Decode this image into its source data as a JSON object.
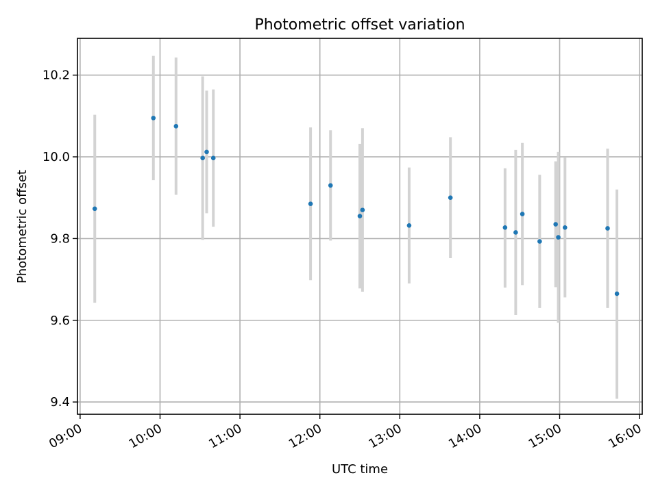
{
  "chart_data": {
    "type": "scatter",
    "title": "Photometric offset variation",
    "xlabel": "UTC time",
    "ylabel": "Photometric offset",
    "x_ticks": [
      "09:00",
      "10:00",
      "11:00",
      "12:00",
      "13:00",
      "14:00",
      "15:00",
      "16:00"
    ],
    "y_ticks": [
      "9.4",
      "9.6",
      "9.8",
      "10.0",
      "10.2"
    ],
    "xlim": [
      "08:58",
      "16:02"
    ],
    "ylim": [
      9.37,
      10.29
    ],
    "grid": true,
    "marker_color": "#1f77b4",
    "errorbar_color": "#d3d3d3",
    "series": [
      {
        "points": [
          {
            "x": "09:11",
            "y": 9.873,
            "ylow": 9.643,
            "yhigh": 10.103
          },
          {
            "x": "09:55",
            "y": 10.095,
            "ylow": 9.943,
            "yhigh": 10.247
          },
          {
            "x": "10:12",
            "y": 10.075,
            "ylow": 9.907,
            "yhigh": 10.243
          },
          {
            "x": "10:32",
            "y": 9.997,
            "ylow": 9.797,
            "yhigh": 10.197
          },
          {
            "x": "10:35",
            "y": 10.012,
            "ylow": 9.862,
            "yhigh": 10.162
          },
          {
            "x": "10:40",
            "y": 9.997,
            "ylow": 9.829,
            "yhigh": 10.165
          },
          {
            "x": "11:53",
            "y": 9.885,
            "ylow": 9.698,
            "yhigh": 10.072
          },
          {
            "x": "12:08",
            "y": 9.93,
            "ylow": 9.795,
            "yhigh": 10.065
          },
          {
            "x": "12:30",
            "y": 9.855,
            "ylow": 9.678,
            "yhigh": 10.032
          },
          {
            "x": "12:32",
            "y": 9.87,
            "ylow": 9.67,
            "yhigh": 10.07
          },
          {
            "x": "13:07",
            "y": 9.832,
            "ylow": 9.69,
            "yhigh": 9.974
          },
          {
            "x": "13:38",
            "y": 9.9,
            "ylow": 9.752,
            "yhigh": 10.048
          },
          {
            "x": "14:19",
            "y": 9.827,
            "ylow": 9.68,
            "yhigh": 9.972
          },
          {
            "x": "14:27",
            "y": 9.815,
            "ylow": 9.613,
            "yhigh": 10.017
          },
          {
            "x": "14:32",
            "y": 9.86,
            "ylow": 9.686,
            "yhigh": 10.034
          },
          {
            "x": "14:45",
            "y": 9.793,
            "ylow": 9.63,
            "yhigh": 9.956
          },
          {
            "x": "14:57",
            "y": 9.835,
            "ylow": 9.681,
            "yhigh": 9.989
          },
          {
            "x": "14:59",
            "y": 9.803,
            "ylow": 9.594,
            "yhigh": 10.012
          },
          {
            "x": "15:04",
            "y": 9.827,
            "ylow": 9.656,
            "yhigh": 9.998
          },
          {
            "x": "15:36",
            "y": 9.825,
            "ylow": 9.63,
            "yhigh": 10.02
          },
          {
            "x": "15:43",
            "y": 9.665,
            "ylow": 9.408,
            "yhigh": 9.92
          }
        ]
      }
    ]
  }
}
